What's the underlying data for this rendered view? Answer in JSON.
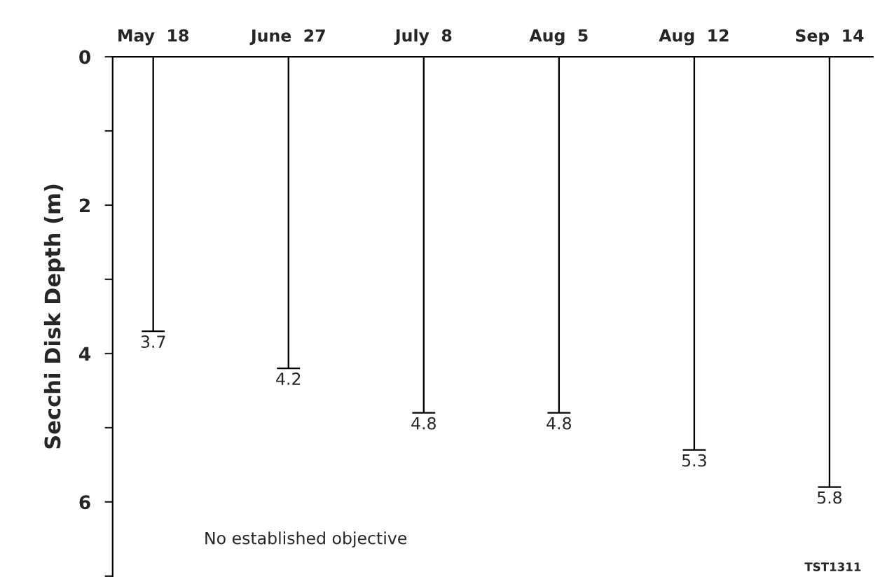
{
  "chart_data": {
    "type": "bar",
    "ylabel": "Secchi Disk Depth (m)",
    "categories": [
      "May  18",
      "June  27",
      "July  8",
      "Aug  5",
      "Aug  12",
      "Sep  14"
    ],
    "values": [
      3.7,
      4.2,
      4.8,
      4.8,
      5.3,
      5.8
    ],
    "color": "#000000",
    "data_labels": true,
    "ylim": [
      7,
      0
    ],
    "yticks": [
      0,
      {
        "value": 1,
        "label": null
      },
      2,
      {
        "value": 3,
        "label": null
      },
      4,
      {
        "value": 5,
        "label": null
      },
      6,
      {
        "value": 7,
        "label": null
      }
    ],
    "grid": false,
    "legend": false,
    "annotations": [
      "No established objective",
      "TST1311"
    ]
  }
}
